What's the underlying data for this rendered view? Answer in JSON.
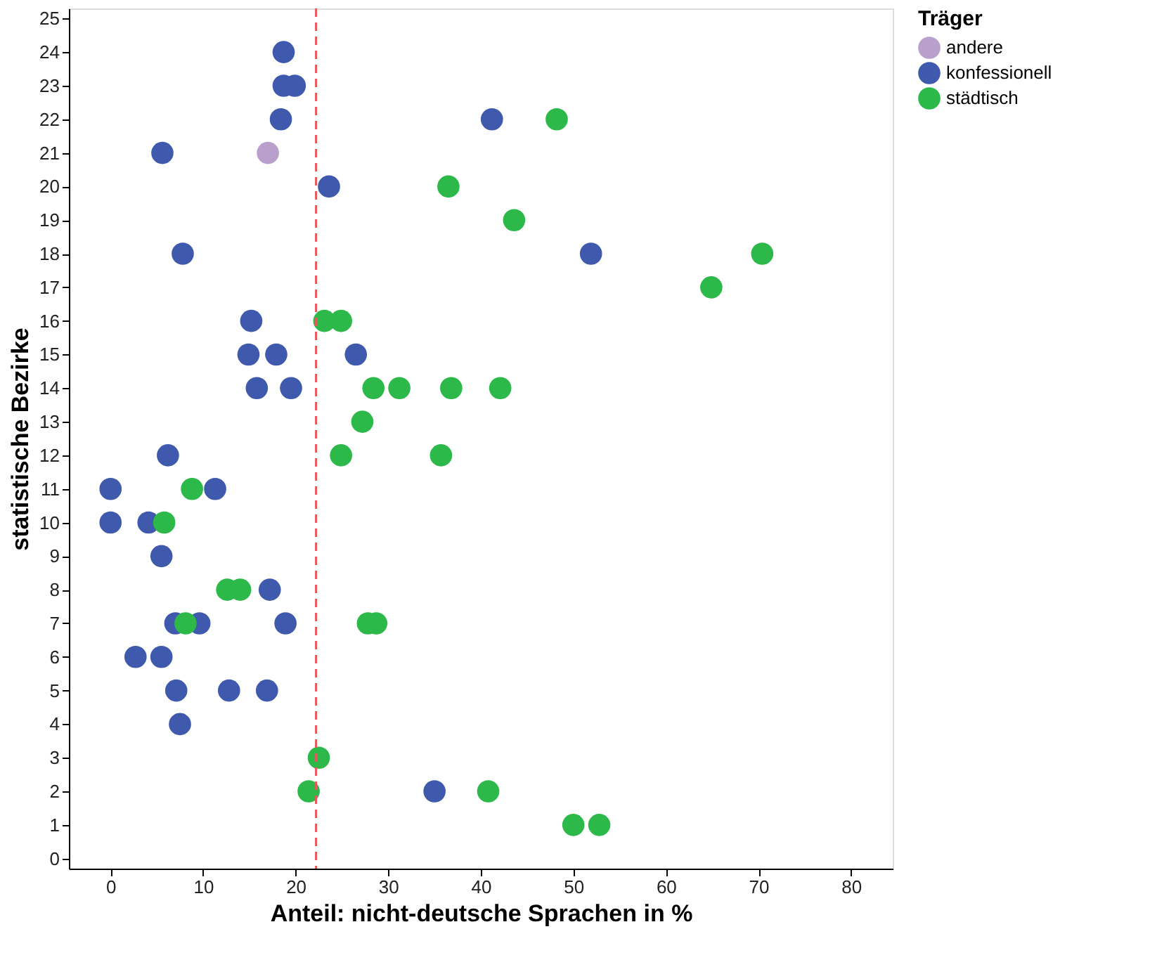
{
  "chart_data": {
    "type": "scatter",
    "xlabel": "Anteil: nicht-deutsche Sprachen in %",
    "ylabel": "statistische Bezirke",
    "legend_title": "Träger",
    "legend": "top right",
    "marker": "circle",
    "grid": false,
    "xlim": [
      -4.5,
      84.5
    ],
    "xticks": [
      0,
      10,
      20,
      30,
      40,
      50,
      60,
      70,
      80
    ],
    "ylim": [
      -0.3,
      25.3
    ],
    "yticks": [
      0,
      1,
      2,
      3,
      4,
      5,
      6,
      7,
      8,
      9,
      10,
      11,
      12,
      13,
      14,
      15,
      16,
      17,
      18,
      19,
      20,
      21,
      22,
      23,
      24,
      25
    ],
    "ref_lines": [
      {
        "axis": "x",
        "value": 22.2,
        "color": "#e8585a",
        "line_style": "dashed"
      }
    ],
    "series": [
      {
        "name": "andere",
        "color": "#b89fcc",
        "x": [
          17.0
        ],
        "values": [
          21
        ]
      },
      {
        "name": "konfessionell",
        "color": "#3f59ac",
        "x": [
          18.7,
          18.7,
          19.9,
          18.4,
          41.2,
          5.6,
          23.6,
          7.8,
          51.9,
          15.2,
          14.9,
          17.9,
          26.5,
          15.8,
          19.5,
          6.2,
          0,
          11.3,
          0,
          4.1,
          5.5,
          17.2,
          7.0,
          9.6,
          18.9,
          2.7,
          5.5,
          7.1,
          12.8,
          16.9,
          7.5,
          35.0
        ],
        "values": [
          24,
          23,
          23,
          22,
          22,
          21,
          20,
          18,
          18,
          16,
          15,
          15,
          15,
          14,
          14,
          12,
          11,
          11,
          10,
          10,
          9,
          8,
          7,
          7,
          7,
          6,
          6,
          5,
          5,
          5,
          4,
          2
        ]
      },
      {
        "name": "städtisch",
        "color": "#2db84a",
        "x": [
          48.2,
          36.5,
          43.6,
          70.4,
          64.9,
          23.1,
          24.9,
          28.4,
          31.2,
          36.8,
          42.1,
          27.2,
          24.9,
          35.7,
          8.8,
          5.8,
          12.6,
          14.0,
          8.1,
          27.8,
          28.7,
          22.5,
          21.4,
          40.8,
          50.0,
          52.8
        ],
        "values": [
          22,
          20,
          19,
          18,
          17,
          16,
          16,
          14,
          14,
          14,
          14,
          13,
          12,
          12,
          11,
          10,
          8,
          8,
          7,
          7,
          7,
          3,
          2,
          2,
          1,
          1
        ]
      }
    ]
  }
}
